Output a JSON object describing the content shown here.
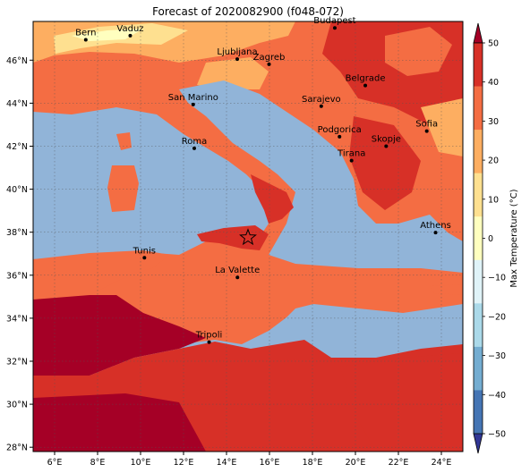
{
  "title": "Forecast of 2020082900 (f048-072)",
  "map": {
    "lon_range": [
      5,
      25
    ],
    "lat_range": [
      27.8,
      47.8
    ],
    "lon_ticks": [
      "6°E",
      "8°E",
      "10°E",
      "12°E",
      "14°E",
      "16°E",
      "18°E",
      "20°E",
      "22°E",
      "24°E"
    ],
    "lat_ticks": [
      "28°N",
      "30°N",
      "32°N",
      "34°N",
      "36°N",
      "38°N",
      "40°N",
      "42°N",
      "44°N",
      "46°N"
    ],
    "cities": [
      {
        "name": "Bern",
        "lon": 7.45,
        "lat": 46.95
      },
      {
        "name": "Vaduz",
        "lon": 9.52,
        "lat": 47.14
      },
      {
        "name": "Budapest",
        "lon": 19.04,
        "lat": 47.5
      },
      {
        "name": "Ljubljana",
        "lon": 14.5,
        "lat": 46.05
      },
      {
        "name": "Zagreb",
        "lon": 15.98,
        "lat": 45.81
      },
      {
        "name": "San Marino",
        "lon": 12.45,
        "lat": 43.94
      },
      {
        "name": "Belgrade",
        "lon": 20.46,
        "lat": 44.82
      },
      {
        "name": "Sarajevo",
        "lon": 18.41,
        "lat": 43.86
      },
      {
        "name": "Sofia",
        "lon": 23.32,
        "lat": 42.7
      },
      {
        "name": "Podgorica",
        "lon": 19.26,
        "lat": 42.44
      },
      {
        "name": "Skopje",
        "lon": 21.43,
        "lat": 42.0
      },
      {
        "name": "Roma",
        "lon": 12.5,
        "lat": 41.9
      },
      {
        "name": "Tirana",
        "lon": 19.82,
        "lat": 41.33
      },
      {
        "name": "Athens",
        "lon": 23.73,
        "lat": 37.98
      },
      {
        "name": "Tunis",
        "lon": 10.18,
        "lat": 36.81
      },
      {
        "name": "La Valette",
        "lon": 14.51,
        "lat": 35.9
      },
      {
        "name": "Tripoli",
        "lon": 13.19,
        "lat": 32.89
      }
    ],
    "marker": {
      "symbol": "star",
      "lon": 15.0,
      "lat": 37.75
    }
  },
  "colorbar": {
    "label": "Max Temperature (°C)",
    "ticks": [
      "50",
      "40",
      "30",
      "20",
      "10",
      "0",
      "−10",
      "−20",
      "−30",
      "−40",
      "−50"
    ],
    "colors": [
      "#313695",
      "#4575b4",
      "#74add1",
      "#abd9e9",
      "#e0f3f8",
      "#ffffbf",
      "#fee090",
      "#fdae61",
      "#f46d43",
      "#d73027",
      "#a50026"
    ]
  },
  "palette": {
    "sea": "#91b4d8",
    "t20": "#fdae61",
    "t30": "#f46d43",
    "t35": "#d73027",
    "t40": "#a50026",
    "t10": "#ffffbf",
    "t25": "#fee090"
  }
}
